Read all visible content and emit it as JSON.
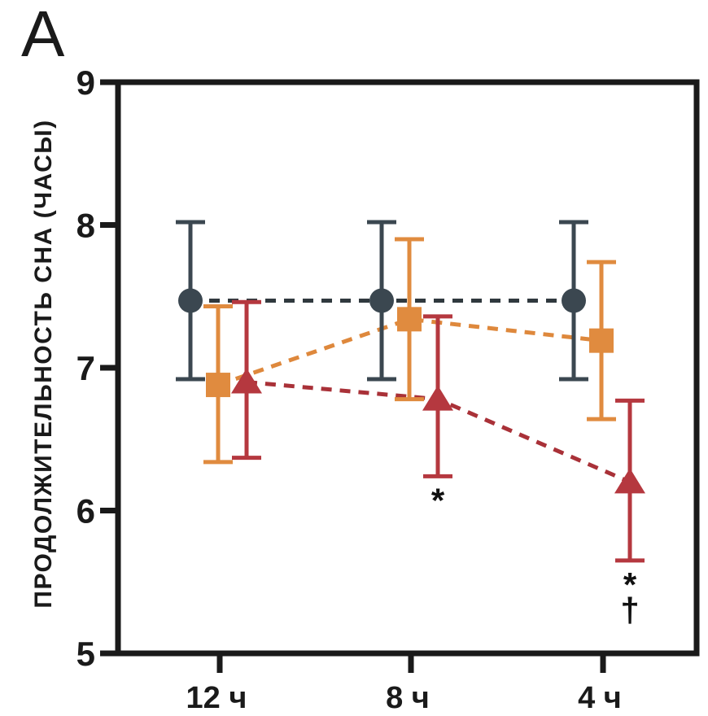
{
  "panel_label": "A",
  "colors": {
    "axis": "#1a1a1a",
    "annotation": "#111111",
    "series_circle_marker": "#3B4750",
    "series_circle_line": "#30393E",
    "series_square_marker": "#E08B3F",
    "series_square_line": "#DE883C",
    "series_triangle_marker": "#B5383F",
    "series_triangle_line": "#A93138"
  },
  "chart_data": {
    "type": "line",
    "title": "",
    "xlabel": "",
    "ylabel": "ПРОДОЛЖИТЕЛЬНОСТЬ СНА (ЧАСЫ)",
    "categories": [
      "12 ч",
      "8 ч",
      "4 ч"
    ],
    "ylim": [
      5,
      9
    ],
    "yticks": [
      9,
      8,
      7,
      6,
      5
    ],
    "ytick_labels": [
      "9",
      "8",
      "7",
      "6",
      "5"
    ],
    "grid": false,
    "legend": "none",
    "line_style": "dashed",
    "error_bars": true,
    "series": [
      {
        "name": "series-circle",
        "marker": "circle",
        "marker_color": "#3B4750",
        "line_color": "#30393E",
        "values": [
          7.47,
          7.47,
          7.47
        ],
        "err_low": [
          6.92,
          6.92,
          6.92
        ],
        "err_high": [
          8.02,
          8.02,
          8.02
        ]
      },
      {
        "name": "series-square",
        "marker": "square",
        "marker_color": "#E08B3F",
        "line_color": "#DE883C",
        "values": [
          6.88,
          7.34,
          7.19
        ],
        "err_low": [
          6.34,
          6.78,
          6.64
        ],
        "err_high": [
          7.43,
          7.9,
          7.74
        ]
      },
      {
        "name": "series-triangle",
        "marker": "triangle",
        "marker_color": "#B5383F",
        "line_color": "#A93138",
        "values": [
          6.9,
          6.78,
          6.2
        ],
        "err_low": [
          6.37,
          6.24,
          5.65
        ],
        "err_high": [
          7.46,
          7.36,
          6.77
        ]
      }
    ],
    "annotations": [
      {
        "series_index": 2,
        "category_index": 1,
        "lines": [
          "*"
        ]
      },
      {
        "series_index": 2,
        "category_index": 2,
        "lines": [
          "*",
          "†"
        ]
      }
    ]
  }
}
